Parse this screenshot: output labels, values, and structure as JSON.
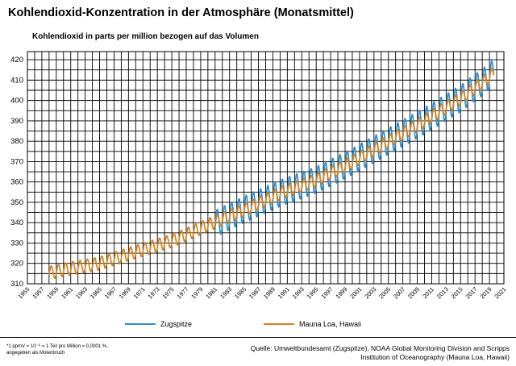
{
  "title": "Kohlendioxid-Konzentration in der Atmosphäre (Monatsmittel)",
  "subtitle": "Kohlendioxid in parts per million bezogen auf das Volumen",
  "colors": {
    "zugspitze": "#2d8fd0",
    "mauna_loa": "#d2811d",
    "grid": "#000000"
  },
  "legend": {
    "zugspitze": "Zugspitze",
    "mauna_loa": "Mauna Loa, Hawaii"
  },
  "footnote": {
    "line1": "*1 ppmV = 10⁻⁶ = 1 Teil pro Million = 0,0001 %,",
    "line2": "angegeben als Molenbruch"
  },
  "source": {
    "line1": "Quelle: Umweltbundesamt (Zugspitze), NOAA Global Monitoring Division and Scripps",
    "line2": "Institution of Oceanography  (Mauna Loa, Hawaii)"
  },
  "chart_data": {
    "type": "line",
    "x_ticks": [
      "1955",
      "1957",
      "1959",
      "1961",
      "1963",
      "1965",
      "1967",
      "1969",
      "1971",
      "1973",
      "1975",
      "1977",
      "1979",
      "1981",
      "1983",
      "1985",
      "1987",
      "1989",
      "1991",
      "1993",
      "1995",
      "1997",
      "1999",
      "2001",
      "2003",
      "2005",
      "2007",
      "2009",
      "2011",
      "2013",
      "2015",
      "2017",
      "2019",
      "2021"
    ],
    "y_ticks": [
      310,
      320,
      330,
      340,
      350,
      360,
      370,
      380,
      390,
      400,
      410,
      420
    ],
    "xlim": [
      1955,
      2021
    ],
    "ylim": [
      310,
      424
    ],
    "grid": true,
    "legend_position": "bottom",
    "series": [
      {
        "name": "Mauna Loa, Hawaii",
        "annual_mean": {
          "years": [
            1958,
            1960,
            1965,
            1970,
            1975,
            1980,
            1985,
            1990,
            1995,
            2000,
            2005,
            2010,
            2015,
            2018,
            2019
          ],
          "values": [
            315.3,
            316.9,
            320.0,
            325.7,
            331.1,
            338.8,
            346.1,
            354.4,
            360.8,
            369.7,
            379.8,
            389.9,
            401.0,
            408.7,
            411.6
          ]
        },
        "seasonal_amplitude": 3.2
      },
      {
        "name": "Zugspitze",
        "annual_mean": {
          "years": [
            1981,
            1985,
            1990,
            1995,
            2000,
            2005,
            2010,
            2015,
            2018,
            2019
          ],
          "values": [
            339.5,
            346.5,
            354.5,
            361.0,
            370.0,
            380.0,
            390.0,
            401.0,
            409.0,
            412.0
          ]
        },
        "seasonal_amplitude": 6.5
      }
    ]
  }
}
